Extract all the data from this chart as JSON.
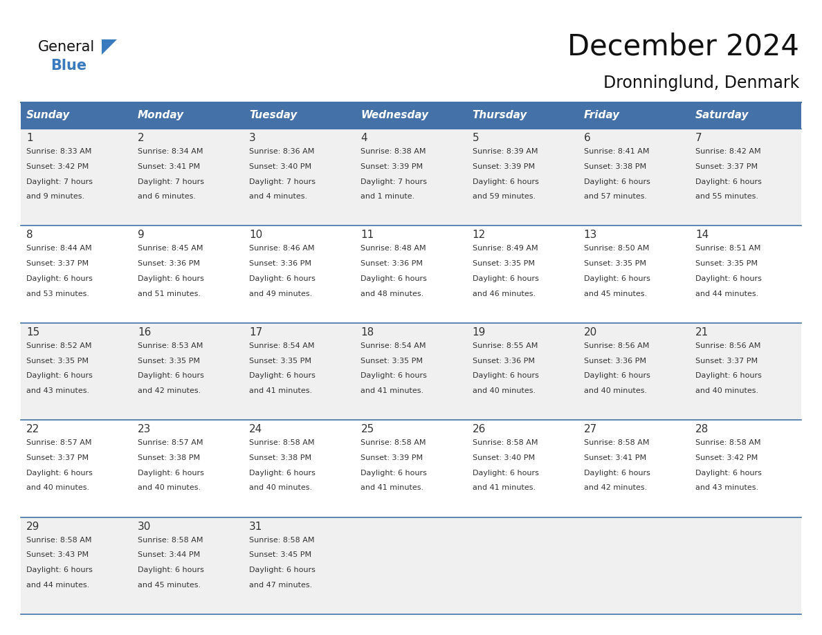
{
  "title": "December 2024",
  "subtitle": "Dronninglund, Denmark",
  "header_bg": "#4472a8",
  "header_text_color": "#ffffff",
  "row_bg_colors": [
    "#f0f0f0",
    "#ffffff",
    "#f0f0f0",
    "#ffffff",
    "#f0f0f0"
  ],
  "border_color": "#4472a8",
  "text_color": "#333333",
  "day_names": [
    "Sunday",
    "Monday",
    "Tuesday",
    "Wednesday",
    "Thursday",
    "Friday",
    "Saturday"
  ],
  "days": [
    {
      "day": 1,
      "col": 0,
      "row": 0,
      "sunrise": "8:33 AM",
      "sunset": "3:42 PM",
      "daylight_h": "7 hours",
      "daylight_m": "and 9 minutes."
    },
    {
      "day": 2,
      "col": 1,
      "row": 0,
      "sunrise": "8:34 AM",
      "sunset": "3:41 PM",
      "daylight_h": "7 hours",
      "daylight_m": "and 6 minutes."
    },
    {
      "day": 3,
      "col": 2,
      "row": 0,
      "sunrise": "8:36 AM",
      "sunset": "3:40 PM",
      "daylight_h": "7 hours",
      "daylight_m": "and 4 minutes."
    },
    {
      "day": 4,
      "col": 3,
      "row": 0,
      "sunrise": "8:38 AM",
      "sunset": "3:39 PM",
      "daylight_h": "7 hours",
      "daylight_m": "and 1 minute."
    },
    {
      "day": 5,
      "col": 4,
      "row": 0,
      "sunrise": "8:39 AM",
      "sunset": "3:39 PM",
      "daylight_h": "6 hours",
      "daylight_m": "and 59 minutes."
    },
    {
      "day": 6,
      "col": 5,
      "row": 0,
      "sunrise": "8:41 AM",
      "sunset": "3:38 PM",
      "daylight_h": "6 hours",
      "daylight_m": "and 57 minutes."
    },
    {
      "day": 7,
      "col": 6,
      "row": 0,
      "sunrise": "8:42 AM",
      "sunset": "3:37 PM",
      "daylight_h": "6 hours",
      "daylight_m": "and 55 minutes."
    },
    {
      "day": 8,
      "col": 0,
      "row": 1,
      "sunrise": "8:44 AM",
      "sunset": "3:37 PM",
      "daylight_h": "6 hours",
      "daylight_m": "and 53 minutes."
    },
    {
      "day": 9,
      "col": 1,
      "row": 1,
      "sunrise": "8:45 AM",
      "sunset": "3:36 PM",
      "daylight_h": "6 hours",
      "daylight_m": "and 51 minutes."
    },
    {
      "day": 10,
      "col": 2,
      "row": 1,
      "sunrise": "8:46 AM",
      "sunset": "3:36 PM",
      "daylight_h": "6 hours",
      "daylight_m": "and 49 minutes."
    },
    {
      "day": 11,
      "col": 3,
      "row": 1,
      "sunrise": "8:48 AM",
      "sunset": "3:36 PM",
      "daylight_h": "6 hours",
      "daylight_m": "and 48 minutes."
    },
    {
      "day": 12,
      "col": 4,
      "row": 1,
      "sunrise": "8:49 AM",
      "sunset": "3:35 PM",
      "daylight_h": "6 hours",
      "daylight_m": "and 46 minutes."
    },
    {
      "day": 13,
      "col": 5,
      "row": 1,
      "sunrise": "8:50 AM",
      "sunset": "3:35 PM",
      "daylight_h": "6 hours",
      "daylight_m": "and 45 minutes."
    },
    {
      "day": 14,
      "col": 6,
      "row": 1,
      "sunrise": "8:51 AM",
      "sunset": "3:35 PM",
      "daylight_h": "6 hours",
      "daylight_m": "and 44 minutes."
    },
    {
      "day": 15,
      "col": 0,
      "row": 2,
      "sunrise": "8:52 AM",
      "sunset": "3:35 PM",
      "daylight_h": "6 hours",
      "daylight_m": "and 43 minutes."
    },
    {
      "day": 16,
      "col": 1,
      "row": 2,
      "sunrise": "8:53 AM",
      "sunset": "3:35 PM",
      "daylight_h": "6 hours",
      "daylight_m": "and 42 minutes."
    },
    {
      "day": 17,
      "col": 2,
      "row": 2,
      "sunrise": "8:54 AM",
      "sunset": "3:35 PM",
      "daylight_h": "6 hours",
      "daylight_m": "and 41 minutes."
    },
    {
      "day": 18,
      "col": 3,
      "row": 2,
      "sunrise": "8:54 AM",
      "sunset": "3:35 PM",
      "daylight_h": "6 hours",
      "daylight_m": "and 41 minutes."
    },
    {
      "day": 19,
      "col": 4,
      "row": 2,
      "sunrise": "8:55 AM",
      "sunset": "3:36 PM",
      "daylight_h": "6 hours",
      "daylight_m": "and 40 minutes."
    },
    {
      "day": 20,
      "col": 5,
      "row": 2,
      "sunrise": "8:56 AM",
      "sunset": "3:36 PM",
      "daylight_h": "6 hours",
      "daylight_m": "and 40 minutes."
    },
    {
      "day": 21,
      "col": 6,
      "row": 2,
      "sunrise": "8:56 AM",
      "sunset": "3:37 PM",
      "daylight_h": "6 hours",
      "daylight_m": "and 40 minutes."
    },
    {
      "day": 22,
      "col": 0,
      "row": 3,
      "sunrise": "8:57 AM",
      "sunset": "3:37 PM",
      "daylight_h": "6 hours",
      "daylight_m": "and 40 minutes."
    },
    {
      "day": 23,
      "col": 1,
      "row": 3,
      "sunrise": "8:57 AM",
      "sunset": "3:38 PM",
      "daylight_h": "6 hours",
      "daylight_m": "and 40 minutes."
    },
    {
      "day": 24,
      "col": 2,
      "row": 3,
      "sunrise": "8:58 AM",
      "sunset": "3:38 PM",
      "daylight_h": "6 hours",
      "daylight_m": "and 40 minutes."
    },
    {
      "day": 25,
      "col": 3,
      "row": 3,
      "sunrise": "8:58 AM",
      "sunset": "3:39 PM",
      "daylight_h": "6 hours",
      "daylight_m": "and 41 minutes."
    },
    {
      "day": 26,
      "col": 4,
      "row": 3,
      "sunrise": "8:58 AM",
      "sunset": "3:40 PM",
      "daylight_h": "6 hours",
      "daylight_m": "and 41 minutes."
    },
    {
      "day": 27,
      "col": 5,
      "row": 3,
      "sunrise": "8:58 AM",
      "sunset": "3:41 PM",
      "daylight_h": "6 hours",
      "daylight_m": "and 42 minutes."
    },
    {
      "day": 28,
      "col": 6,
      "row": 3,
      "sunrise": "8:58 AM",
      "sunset": "3:42 PM",
      "daylight_h": "6 hours",
      "daylight_m": "and 43 minutes."
    },
    {
      "day": 29,
      "col": 0,
      "row": 4,
      "sunrise": "8:58 AM",
      "sunset": "3:43 PM",
      "daylight_h": "6 hours",
      "daylight_m": "and 44 minutes."
    },
    {
      "day": 30,
      "col": 1,
      "row": 4,
      "sunrise": "8:58 AM",
      "sunset": "3:44 PM",
      "daylight_h": "6 hours",
      "daylight_m": "and 45 minutes."
    },
    {
      "day": 31,
      "col": 2,
      "row": 4,
      "sunrise": "8:58 AM",
      "sunset": "3:45 PM",
      "daylight_h": "6 hours",
      "daylight_m": "and 47 minutes."
    }
  ]
}
